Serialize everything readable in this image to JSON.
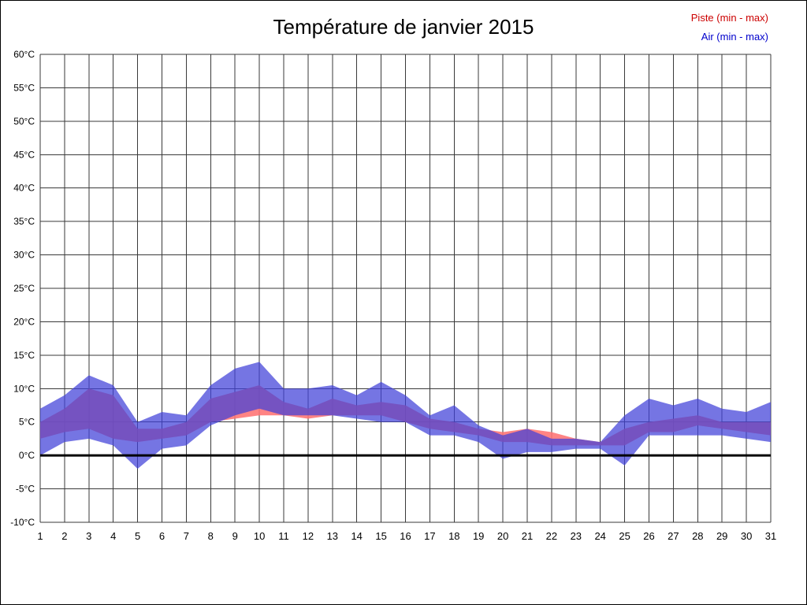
{
  "title": "Température de janvier 2015",
  "legend": {
    "piste": {
      "label": "Piste (min - max)",
      "color": "#cc0000"
    },
    "air": {
      "label": "Air (min - max)",
      "color": "#0000cc"
    }
  },
  "chart_data": {
    "type": "area",
    "title": "Température de janvier 2015",
    "xlabel": "",
    "ylabel": "",
    "x": [
      1,
      2,
      3,
      4,
      5,
      6,
      7,
      8,
      9,
      10,
      11,
      12,
      13,
      14,
      15,
      16,
      17,
      18,
      19,
      20,
      21,
      22,
      23,
      24,
      25,
      26,
      27,
      28,
      29,
      30,
      31
    ],
    "ylim": [
      -10,
      60
    ],
    "ytick_step": 5,
    "ytick_suffix": "°C",
    "grid": true,
    "zero_line_at": 0,
    "legend_position": "top-right",
    "series": [
      {
        "name": "Piste (min - max)",
        "fill": "#ff7373",
        "opacity": 0.88,
        "min": [
          2.5,
          3.5,
          4,
          2.5,
          2,
          2.5,
          3,
          5,
          5.5,
          6,
          6,
          5.5,
          6,
          6,
          6,
          5,
          4,
          3.5,
          3,
          2,
          2,
          1.5,
          1.5,
          1.5,
          1.5,
          3.5,
          3.5,
          4.5,
          4,
          3.5,
          3
        ],
        "max": [
          5,
          7,
          10,
          9,
          4,
          4,
          5,
          8.5,
          9.5,
          10.5,
          8,
          7,
          8.5,
          7.5,
          8,
          7.5,
          5.5,
          5,
          4,
          3.5,
          4,
          3.5,
          2.5,
          2,
          4,
          5,
          5.5,
          6,
          5,
          5,
          5
        ]
      },
      {
        "name": "Air (min - max)",
        "fill": "#4040d8",
        "opacity": 0.72,
        "min": [
          0,
          2,
          2.5,
          1.5,
          -2,
          1,
          1.5,
          4.5,
          6,
          7,
          6,
          6,
          6,
          5.5,
          5,
          5,
          3,
          3,
          2,
          -0.5,
          0.5,
          0.5,
          1,
          1,
          -1.5,
          3,
          3,
          3,
          3,
          2.5,
          2
        ],
        "max": [
          7,
          9,
          12,
          10.5,
          5,
          6.5,
          6,
          10.5,
          13,
          14,
          10,
          10,
          10.5,
          9,
          11,
          9,
          6,
          7.5,
          4.5,
          3,
          4,
          2.5,
          2.5,
          2,
          6,
          8.5,
          7.5,
          8.5,
          7,
          6.5,
          8
        ]
      }
    ]
  }
}
